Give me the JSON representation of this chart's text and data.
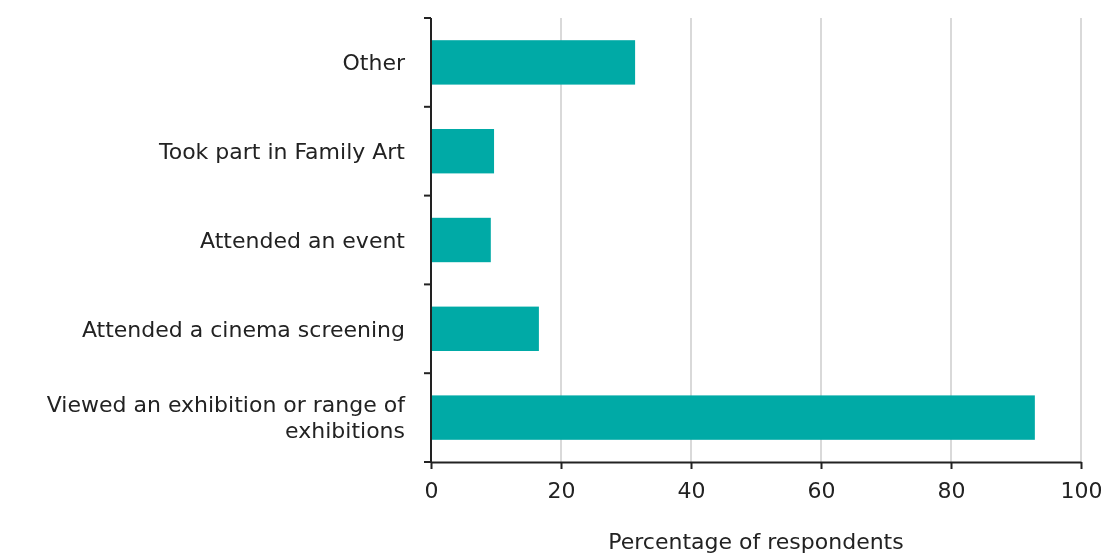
{
  "chart_data": {
    "type": "bar",
    "orientation": "horizontal",
    "categories": [
      "Other",
      "Took part in Family Art",
      "Attended an event",
      "Attended a cinema screening",
      "Viewed an exhibition or range of exhibitions"
    ],
    "values": [
      31.4,
      9.7,
      9.2,
      16.6,
      92.9
    ],
    "color": "#00aaa6",
    "xlabel": "Percentage of respondents",
    "xlim": [
      0,
      100
    ],
    "xticks": [
      0,
      20,
      40,
      60,
      80,
      100
    ],
    "grid": "x"
  }
}
